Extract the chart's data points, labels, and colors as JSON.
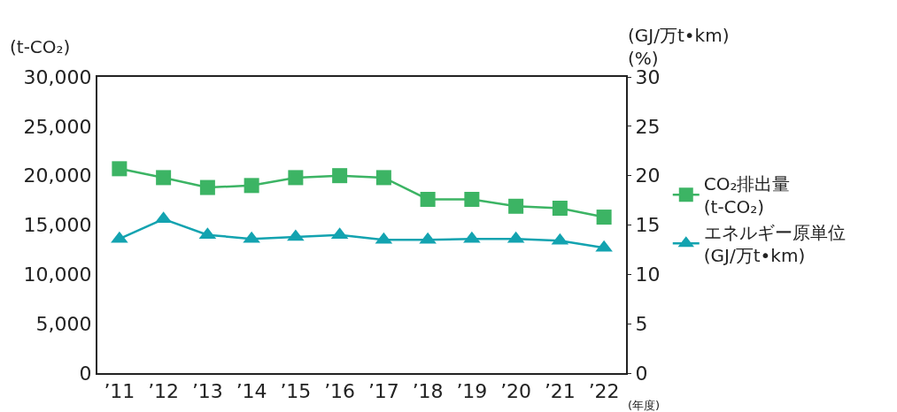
{
  "chart_data": {
    "type": "line",
    "categories": [
      "’11",
      "’12",
      "’13",
      "’14",
      "’15",
      "’16",
      "’17",
      "’18",
      "’19",
      "’20",
      "’21",
      "’22"
    ],
    "ylabel": "(t-CO₂)",
    "y2label": "(GJ/万t•km)\n(%)",
    "ylim": [
      0,
      30000
    ],
    "yticks": [
      {
        "value": 0,
        "label": "0"
      },
      {
        "value": 5000,
        "label": "5,000"
      },
      {
        "value": 10000,
        "label": "10,000"
      },
      {
        "value": 15000,
        "label": "15,000"
      },
      {
        "value": 20000,
        "label": "20,000"
      },
      {
        "value": 25000,
        "label": "25,000"
      },
      {
        "value": 30000,
        "label": "30,000"
      }
    ],
    "y2lim": [
      0,
      30
    ],
    "y2ticks": [
      0,
      5,
      10,
      15,
      20,
      25,
      30
    ],
    "annotations": [
      "(年度)"
    ],
    "legend": "right",
    "series": [
      {
        "name": "CO₂排出量\n(t-CO₂)",
        "color": "#3cb464",
        "marker": "square",
        "values": [
          20700,
          19800,
          18800,
          19000,
          19800,
          20000,
          19800,
          17600,
          17600,
          16900,
          16700,
          15800
        ]
      },
      {
        "name": "エネルギー原単位\n(GJ/万t•km)",
        "color": "#13a3b0",
        "marker": "triangle",
        "axis": "y2",
        "values": [
          13.6,
          15.6,
          14.0,
          13.6,
          13.8,
          14.0,
          13.5,
          13.5,
          13.6,
          13.6,
          13.4,
          12.7
        ]
      }
    ]
  }
}
